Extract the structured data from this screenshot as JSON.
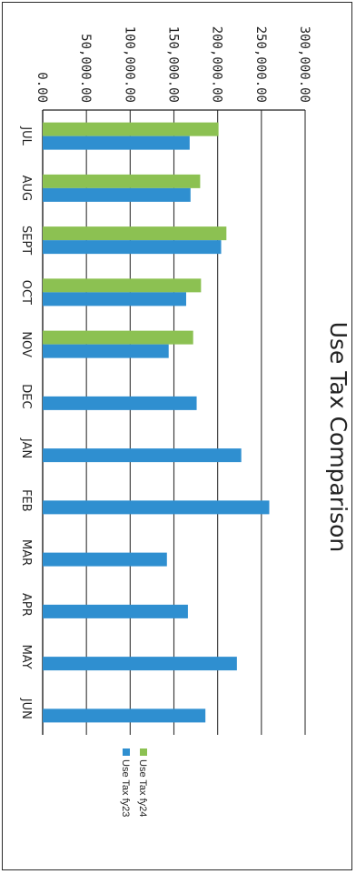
{
  "chart_data": {
    "type": "bar",
    "title": "Use Tax Comparison",
    "xlabel": "",
    "ylabel": "",
    "categories": [
      "JUL",
      "AUG",
      "SEPT",
      "OCT",
      "NOV",
      "DEC",
      "JAN",
      "FEB",
      "MAR",
      "APR",
      "MAY",
      "JUN"
    ],
    "series": [
      {
        "name": "Use Tax fy24",
        "color": "#8cc152",
        "values": [
          201000,
          180000,
          210000,
          181000,
          172000,
          null,
          null,
          null,
          null,
          null,
          null,
          null
        ]
      },
      {
        "name": "Use Tax fy23",
        "color": "#2f8fd0",
        "values": [
          168000,
          169000,
          204000,
          164000,
          144000,
          176000,
          227000,
          259000,
          142000,
          166000,
          222000,
          186000
        ]
      }
    ],
    "ylim": [
      0,
      300000
    ],
    "yticks": [
      "0.00",
      "50,000.00",
      "100,000.00",
      "150,000.00",
      "200,000.00",
      "250,000.00",
      "300,000.00"
    ],
    "grid": true,
    "legend_position": "right"
  }
}
